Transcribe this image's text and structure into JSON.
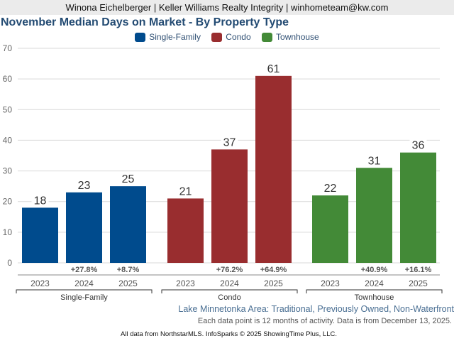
{
  "header": {
    "agent_line": "Winona Eichelberger | Keller Williams Realty Integrity | winhometeam@kw.com"
  },
  "chart_data": {
    "type": "bar",
    "title": "November Median Days on Market - By Property Type",
    "xlabel": "",
    "ylabel": "",
    "ylim": [
      0,
      70
    ],
    "yticks": [
      0,
      10,
      20,
      30,
      40,
      50,
      60,
      70
    ],
    "grid": true,
    "legend_placement": "top-center",
    "legend": [
      {
        "name": "Single-Family",
        "color": "#004b8d"
      },
      {
        "name": "Condo",
        "color": "#992d2f"
      },
      {
        "name": "Townhouse",
        "color": "#438a37"
      }
    ],
    "groups": [
      {
        "name": "Single-Family",
        "color": "#004b8d",
        "categories": [
          "2023",
          "2024",
          "2025"
        ],
        "values": [
          18,
          23,
          25
        ],
        "changes": [
          "",
          "+27.8%",
          "+8.7%"
        ]
      },
      {
        "name": "Condo",
        "color": "#992d2f",
        "categories": [
          "2023",
          "2024",
          "2025"
        ],
        "values": [
          21,
          37,
          61
        ],
        "changes": [
          "",
          "+76.2%",
          "+64.9%"
        ]
      },
      {
        "name": "Townhouse",
        "color": "#438a37",
        "categories": [
          "2023",
          "2024",
          "2025"
        ],
        "values": [
          22,
          31,
          36
        ],
        "changes": [
          "",
          "+40.9%",
          "+16.1%"
        ]
      }
    ]
  },
  "footer": {
    "area_label": "Lake Minnetonka Area: Traditional, Previously Owned, Non-Waterfront",
    "note": "Each data point is 12 months of activity. Data is from December 13, 2025.",
    "credit": "All data from NorthstarMLS. InfoSparks © 2025 ShowingTime Plus, LLC."
  }
}
